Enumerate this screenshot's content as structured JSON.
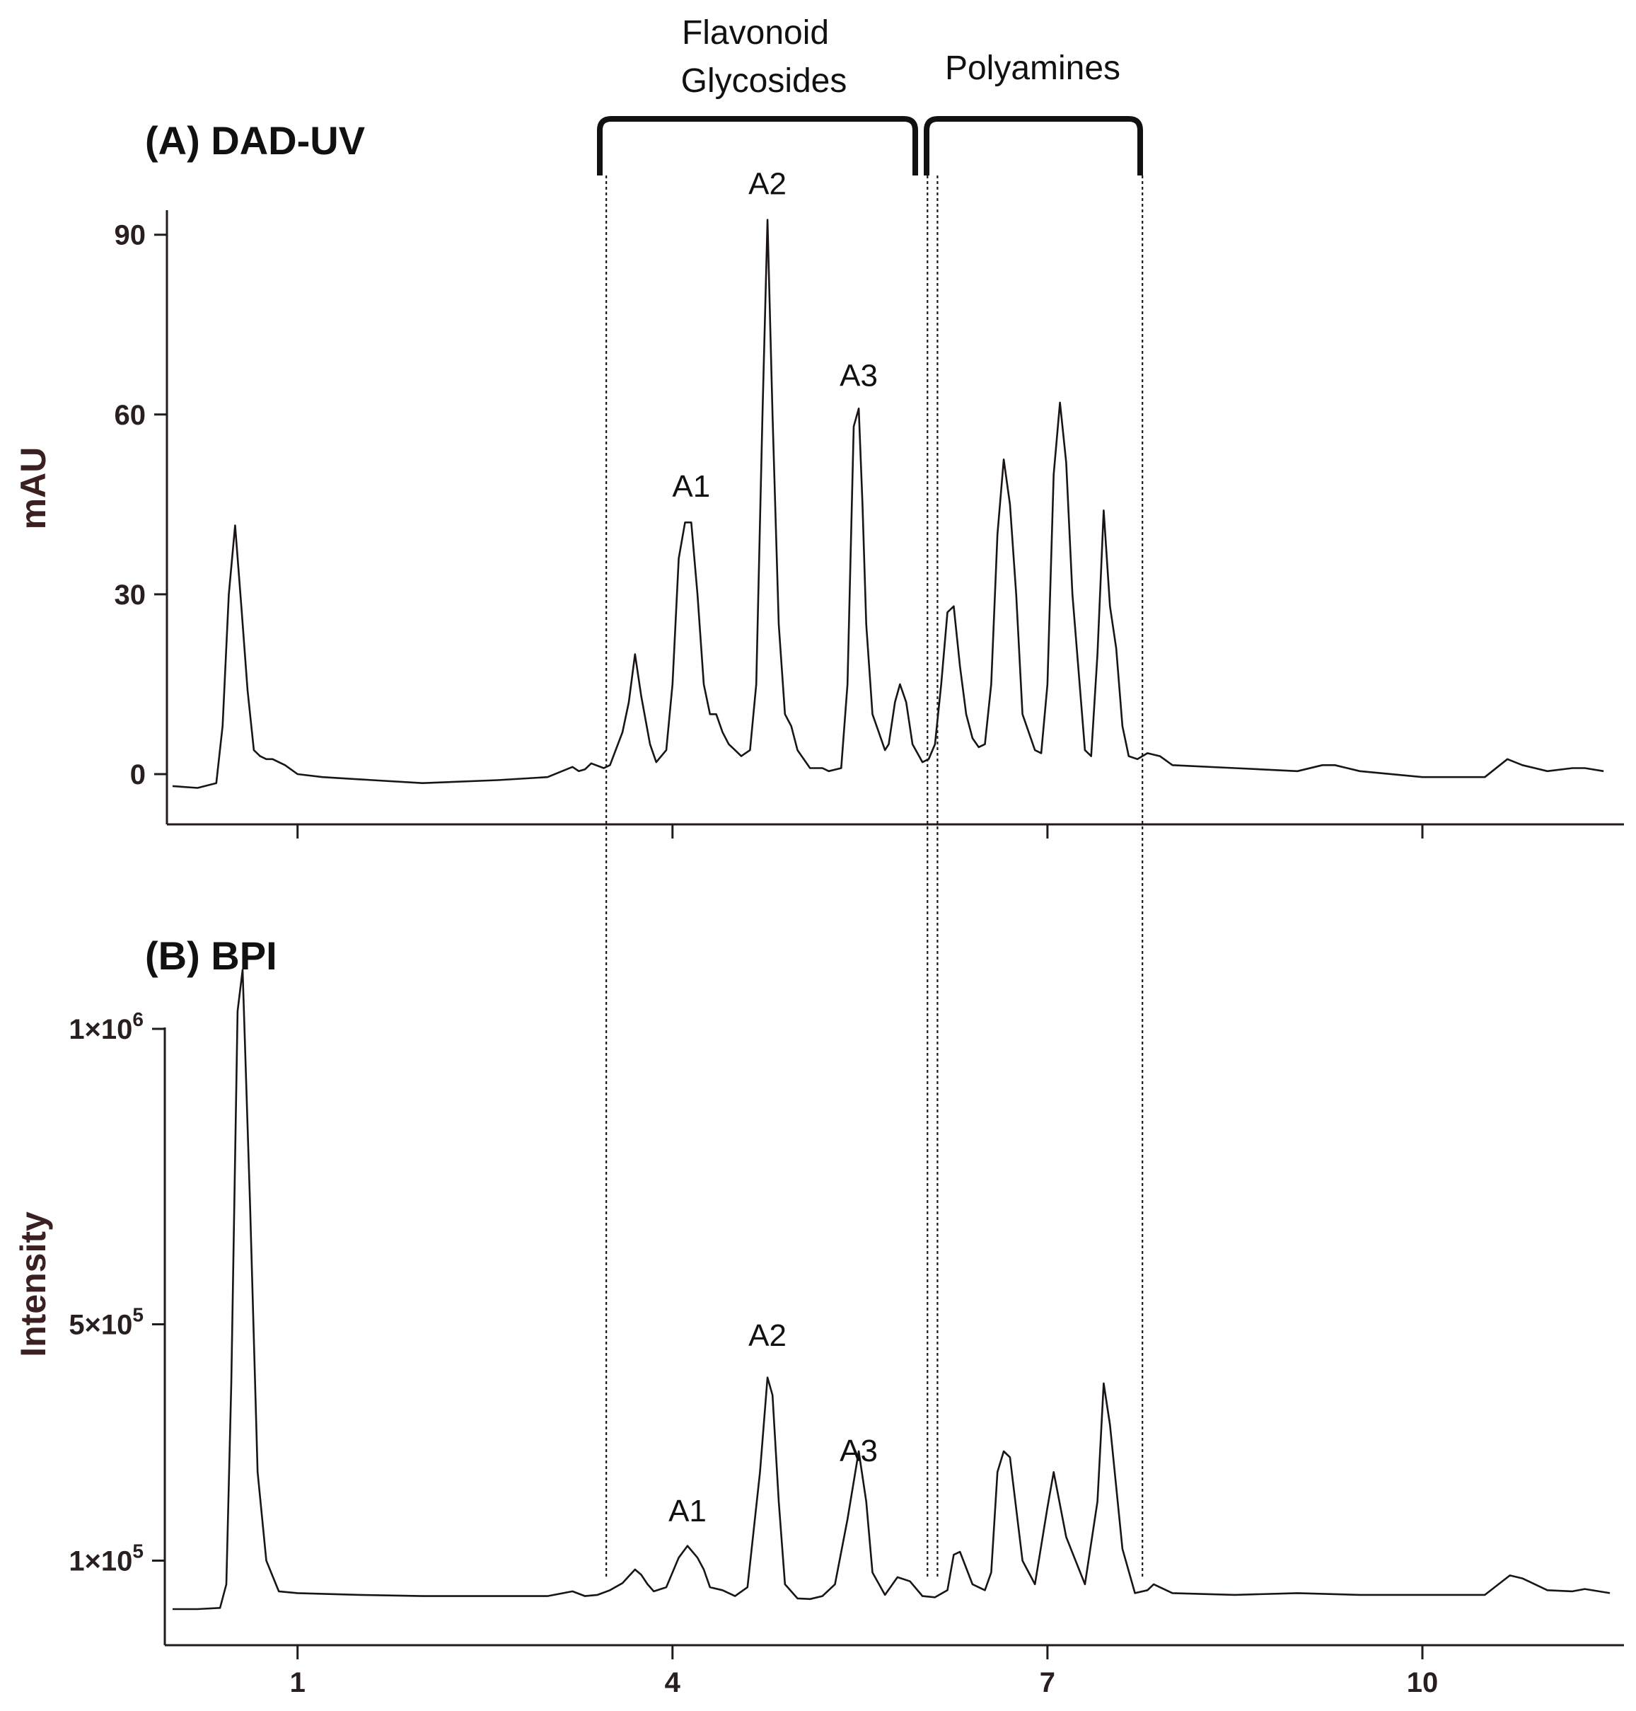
{
  "groups": [
    {
      "lines": [
        "Flavonoid",
        "Glycosides"
      ],
      "start": 3.47,
      "end": 6.04
    },
    {
      "lines": [
        "Polyamines"
      ],
      "start": 6.12,
      "end": 7.76
    }
  ],
  "chart_data": [
    {
      "type": "line",
      "title": "(A) DAD-UV",
      "xlabel": "",
      "ylabel": "mAU",
      "xlim": [
        -0.05,
        11.6
      ],
      "ylim": [
        -9,
        94
      ],
      "x_ticks": [
        1,
        4,
        7,
        10
      ],
      "x_tick_labels": [],
      "y_ticks": [
        0,
        30,
        60,
        90
      ],
      "y_tick_labels": [
        "0",
        "30",
        "60",
        "90"
      ],
      "grid": false,
      "peak_labels": [
        {
          "text": "A1",
          "x": 4.15,
          "y": 42.5
        },
        {
          "text": "A2",
          "x": 4.76,
          "y": 93
        },
        {
          "text": "A3",
          "x": 5.49,
          "y": 61
        }
      ],
      "series": [
        {
          "x": [
            0,
            0.2,
            0.35,
            0.4,
            0.45,
            0.5,
            0.55,
            0.6,
            0.65,
            0.7,
            0.75,
            0.8,
            0.9,
            1.0,
            1.2,
            1.6,
            2.0,
            2.6,
            3.0,
            3.2,
            3.25,
            3.3,
            3.35,
            3.45,
            3.5,
            3.6,
            3.65,
            3.7,
            3.75,
            3.82,
            3.87,
            3.95,
            4.0,
            4.05,
            4.1,
            4.15,
            4.2,
            4.25,
            4.3,
            4.35,
            4.4,
            4.45,
            4.5,
            4.55,
            4.62,
            4.67,
            4.72,
            4.76,
            4.8,
            4.85,
            4.9,
            4.95,
            5.0,
            5.1,
            5.2,
            5.25,
            5.35,
            5.4,
            5.45,
            5.49,
            5.52,
            5.55,
            5.6,
            5.65,
            5.7,
            5.73,
            5.78,
            5.82,
            5.87,
            5.92,
            6.0,
            6.05,
            6.1,
            6.15,
            6.2,
            6.25,
            6.3,
            6.35,
            6.4,
            6.45,
            6.5,
            6.55,
            6.6,
            6.65,
            6.7,
            6.75,
            6.8,
            6.9,
            6.95,
            7.0,
            7.05,
            7.1,
            7.15,
            7.2,
            7.3,
            7.35,
            7.4,
            7.45,
            7.5,
            7.55,
            7.6,
            7.65,
            7.72,
            7.8,
            7.9,
            8.0,
            8.5,
            9.0,
            9.2,
            9.3,
            9.5,
            10.0,
            10.5,
            10.68,
            10.8,
            10.9,
            11.0,
            11.2,
            11.3,
            11.45
          ],
          "y": [
            -2,
            -2.3,
            -1.5,
            8,
            30,
            41.5,
            28,
            14,
            4,
            3,
            2.5,
            2.5,
            1.5,
            0,
            -0.5,
            -1,
            -1.5,
            -1,
            -0.5,
            1.2,
            0.5,
            0.8,
            1.8,
            1,
            1.5,
            7,
            12,
            20,
            13,
            5,
            2,
            4,
            15,
            36,
            42,
            42,
            30,
            15,
            10,
            10,
            7,
            5,
            4,
            3,
            4,
            15,
            60,
            92.5,
            60,
            25,
            10,
            8,
            4,
            1,
            1,
            0.5,
            1,
            15,
            58,
            61,
            45,
            25,
            10,
            7,
            4,
            5,
            12,
            15,
            12,
            5,
            2,
            2.5,
            5,
            15,
            27,
            28,
            18,
            10,
            6,
            4.5,
            5,
            15,
            40,
            52.5,
            45,
            30,
            10,
            4,
            3.5,
            15,
            50,
            62,
            52,
            30,
            4,
            3,
            20,
            44,
            28,
            21,
            8,
            3,
            2.5,
            3.5,
            3,
            1.5,
            1,
            0.5,
            1.5,
            1.5,
            0.5,
            -0.5,
            -0.5,
            2.5,
            1.5,
            1,
            0.5,
            1,
            1,
            0.5
          ]
        }
      ]
    },
    {
      "type": "line",
      "title": "(B) BPI",
      "xlabel": "",
      "ylabel": "Intensity",
      "xlim": [
        -0.05,
        11.6
      ],
      "ylim": [
        -20000,
        1230000
      ],
      "x_ticks": [
        1,
        4,
        7,
        10
      ],
      "x_tick_labels": [
        "1",
        "4",
        "7",
        "10"
      ],
      "y_ticks": [
        100000,
        500000,
        1000000
      ],
      "y_tick_labels": [
        {
          "base": "1×10",
          "exp": "5"
        },
        {
          "base": "5×10",
          "exp": "5"
        },
        {
          "base": "1×10",
          "exp": "6"
        }
      ],
      "grid": false,
      "peak_labels": [
        {
          "text": "A1",
          "x": 4.12,
          "y": 128000
        },
        {
          "text": "A2",
          "x": 4.76,
          "y": 425000
        },
        {
          "text": "A3",
          "x": 5.49,
          "y": 230000
        }
      ],
      "series": [
        {
          "x": [
            0,
            0.2,
            0.38,
            0.43,
            0.47,
            0.52,
            0.56,
            0.62,
            0.68,
            0.75,
            0.85,
            1.0,
            1.5,
            2.0,
            3.0,
            3.2,
            3.3,
            3.4,
            3.5,
            3.6,
            3.7,
            3.75,
            3.8,
            3.85,
            3.95,
            4.05,
            4.12,
            4.2,
            4.25,
            4.3,
            4.4,
            4.5,
            4.6,
            4.7,
            4.76,
            4.8,
            4.85,
            4.9,
            5.0,
            5.1,
            5.2,
            5.3,
            5.4,
            5.49,
            5.55,
            5.6,
            5.7,
            5.8,
            5.9,
            6.0,
            6.1,
            6.2,
            6.25,
            6.3,
            6.4,
            6.5,
            6.55,
            6.6,
            6.65,
            6.7,
            6.8,
            6.9,
            7.0,
            7.05,
            7.15,
            7.3,
            7.4,
            7.45,
            7.5,
            7.6,
            7.7,
            7.8,
            7.85,
            8.0,
            8.5,
            9.0,
            9.5,
            10.0,
            10.5,
            10.7,
            10.8,
            11.0,
            11.2,
            11.3,
            11.5
          ],
          "y": [
            18000,
            18000,
            20000,
            60000,
            400000,
            1030000,
            1100000,
            700000,
            250000,
            100000,
            48000,
            45000,
            42000,
            40000,
            40000,
            48000,
            40000,
            42000,
            50000,
            62000,
            85000,
            76000,
            60000,
            48000,
            55000,
            105000,
            125000,
            105000,
            85000,
            55000,
            50000,
            40000,
            55000,
            250000,
            410000,
            380000,
            200000,
            60000,
            36000,
            35000,
            40000,
            60000,
            170000,
            285000,
            200000,
            80000,
            42000,
            72000,
            65000,
            40000,
            38000,
            50000,
            110000,
            115000,
            60000,
            50000,
            80000,
            250000,
            285000,
            275000,
            100000,
            60000,
            190000,
            250000,
            140000,
            60000,
            200000,
            400000,
            330000,
            120000,
            45000,
            50000,
            60000,
            45000,
            42000,
            45000,
            42000,
            42000,
            42000,
            75000,
            70000,
            50000,
            48000,
            52000,
            45000
          ]
        }
      ]
    }
  ]
}
